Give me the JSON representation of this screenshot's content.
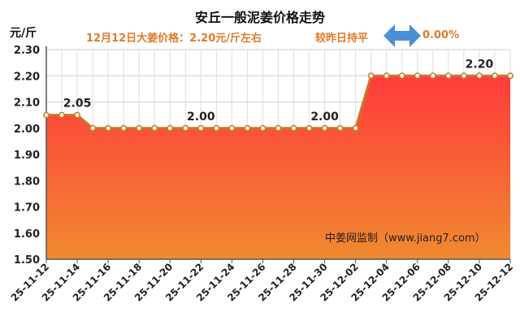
{
  "header": {
    "title": "安丘一般泥姜价格走势",
    "unit": "元/斤",
    "price_info": "12月12日大姜价格：2.20元/斤左右",
    "compare_label": "较昨日持平",
    "compare_value": "0.00%",
    "compare_icon": "left-right-arrow-icon"
  },
  "watermark": "中姜网监制（www.jiang7.com）",
  "colors": {
    "accent": "#e07a2a",
    "line": "#c8782a",
    "fill_top": "#ff3b3b",
    "fill_bottom": "#f08a30",
    "arrow": "#4a90d9"
  },
  "chart_data": {
    "type": "area",
    "title": "安丘一般泥姜价格走势",
    "ylabel": "元/斤",
    "xlabel": "",
    "ylim": [
      1.5,
      2.3
    ],
    "y_ticks": [
      "1.50",
      "1.60",
      "1.70",
      "1.80",
      "1.90",
      "2.00",
      "2.10",
      "2.20",
      "2.30"
    ],
    "grid": true,
    "x": [
      "25-11-12",
      "25-11-13",
      "25-11-14",
      "25-11-15",
      "25-11-16",
      "25-11-17",
      "25-11-18",
      "25-11-19",
      "25-11-20",
      "25-11-21",
      "25-11-22",
      "25-11-23",
      "25-11-24",
      "25-11-25",
      "25-11-26",
      "25-11-27",
      "25-11-28",
      "25-11-29",
      "25-11-30",
      "25-12-01",
      "25-12-02",
      "25-12-03",
      "25-12-04",
      "25-12-05",
      "25-12-06",
      "25-12-07",
      "25-12-08",
      "25-12-09",
      "25-12-10",
      "25-12-11",
      "25-12-12"
    ],
    "x_tick_labels": [
      "25-11-12",
      "25-11-14",
      "25-11-16",
      "25-11-18",
      "25-11-20",
      "25-11-22",
      "25-11-24",
      "25-11-26",
      "25-11-28",
      "25-11-30",
      "25-12-02",
      "25-12-04",
      "25-12-06",
      "25-12-08",
      "25-12-10",
      "25-12-12"
    ],
    "values": [
      2.05,
      2.05,
      2.05,
      2.0,
      2.0,
      2.0,
      2.0,
      2.0,
      2.0,
      2.0,
      2.0,
      2.0,
      2.0,
      2.0,
      2.0,
      2.0,
      2.0,
      2.0,
      2.0,
      2.0,
      2.0,
      2.2,
      2.2,
      2.2,
      2.2,
      2.2,
      2.2,
      2.2,
      2.2,
      2.2,
      2.2
    ],
    "annotations": [
      {
        "x": "25-11-14",
        "text": "2.05"
      },
      {
        "x": "25-11-22",
        "text": "2.00"
      },
      {
        "x": "25-11-30",
        "text": "2.00"
      },
      {
        "x": "25-12-10",
        "text": "2.20"
      }
    ]
  }
}
